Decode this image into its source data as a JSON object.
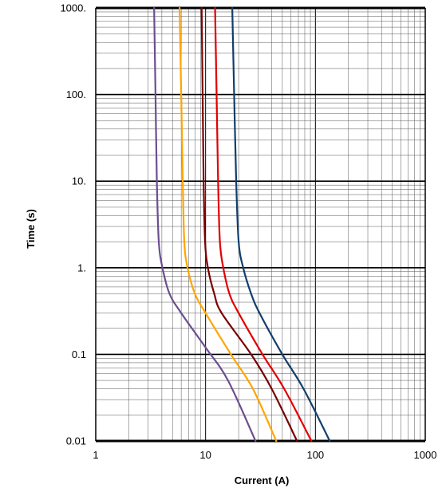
{
  "chart_data": {
    "type": "line",
    "xlabel": "Current (A)",
    "ylabel": "Time (s)",
    "x_scale": "log",
    "y_scale": "log",
    "xlim": [
      1,
      1000
    ],
    "ylim": [
      0.01,
      1000
    ],
    "x_ticks": [
      {
        "value": 1,
        "label": "1"
      },
      {
        "value": 10,
        "label": "10"
      },
      {
        "value": 100,
        "label": "100"
      },
      {
        "value": 1000,
        "label": "1000"
      }
    ],
    "y_ticks": [
      {
        "value": 0.01,
        "label": "0.01"
      },
      {
        "value": 0.1,
        "label": "0.1"
      },
      {
        "value": 1,
        "label": "1."
      },
      {
        "value": 10,
        "label": "10."
      },
      {
        "value": 100,
        "label": "100."
      },
      {
        "value": 1000,
        "label": "1000."
      }
    ],
    "grid": true,
    "series": [
      {
        "color": "#6b4e8f",
        "points": [
          [
            3.4,
            1000
          ],
          [
            3.5,
            100
          ],
          [
            3.6,
            10
          ],
          [
            3.75,
            2
          ],
          [
            4.05,
            1
          ],
          [
            4.7,
            0.5
          ],
          [
            6.0,
            0.3
          ],
          [
            10,
            0.12
          ],
          [
            16,
            0.05
          ],
          [
            28.5,
            0.01
          ]
        ]
      },
      {
        "color": "#ffa500",
        "points": [
          [
            5.8,
            1000
          ],
          [
            6.0,
            100
          ],
          [
            6.2,
            10
          ],
          [
            6.4,
            2
          ],
          [
            6.85,
            1
          ],
          [
            8.0,
            0.5
          ],
          [
            10,
            0.3
          ],
          [
            17,
            0.1
          ],
          [
            27,
            0.04
          ],
          [
            44,
            0.01
          ]
        ]
      },
      {
        "color": "#7a0000",
        "points": [
          [
            9.2,
            1000
          ],
          [
            9.4,
            100
          ],
          [
            9.6,
            10
          ],
          [
            9.9,
            2
          ],
          [
            10.5,
            1
          ],
          [
            12,
            0.5
          ],
          [
            14,
            0.3
          ],
          [
            26,
            0.1
          ],
          [
            40,
            0.04
          ],
          [
            68,
            0.01
          ]
        ]
      },
      {
        "color": "#e30000",
        "points": [
          [
            12.2,
            1000
          ],
          [
            12.6,
            100
          ],
          [
            13.0,
            10
          ],
          [
            13.5,
            2
          ],
          [
            14.5,
            1
          ],
          [
            16.5,
            0.5
          ],
          [
            20,
            0.3
          ],
          [
            33,
            0.1
          ],
          [
            52,
            0.04
          ],
          [
            92,
            0.01
          ]
        ]
      },
      {
        "color": "#123e6b",
        "points": [
          [
            17.5,
            1000
          ],
          [
            18.2,
            100
          ],
          [
            19.0,
            10
          ],
          [
            20,
            2
          ],
          [
            22,
            1
          ],
          [
            26,
            0.5
          ],
          [
            31,
            0.3
          ],
          [
            50,
            0.1
          ],
          [
            78,
            0.04
          ],
          [
            135,
            0.01
          ]
        ]
      }
    ]
  }
}
